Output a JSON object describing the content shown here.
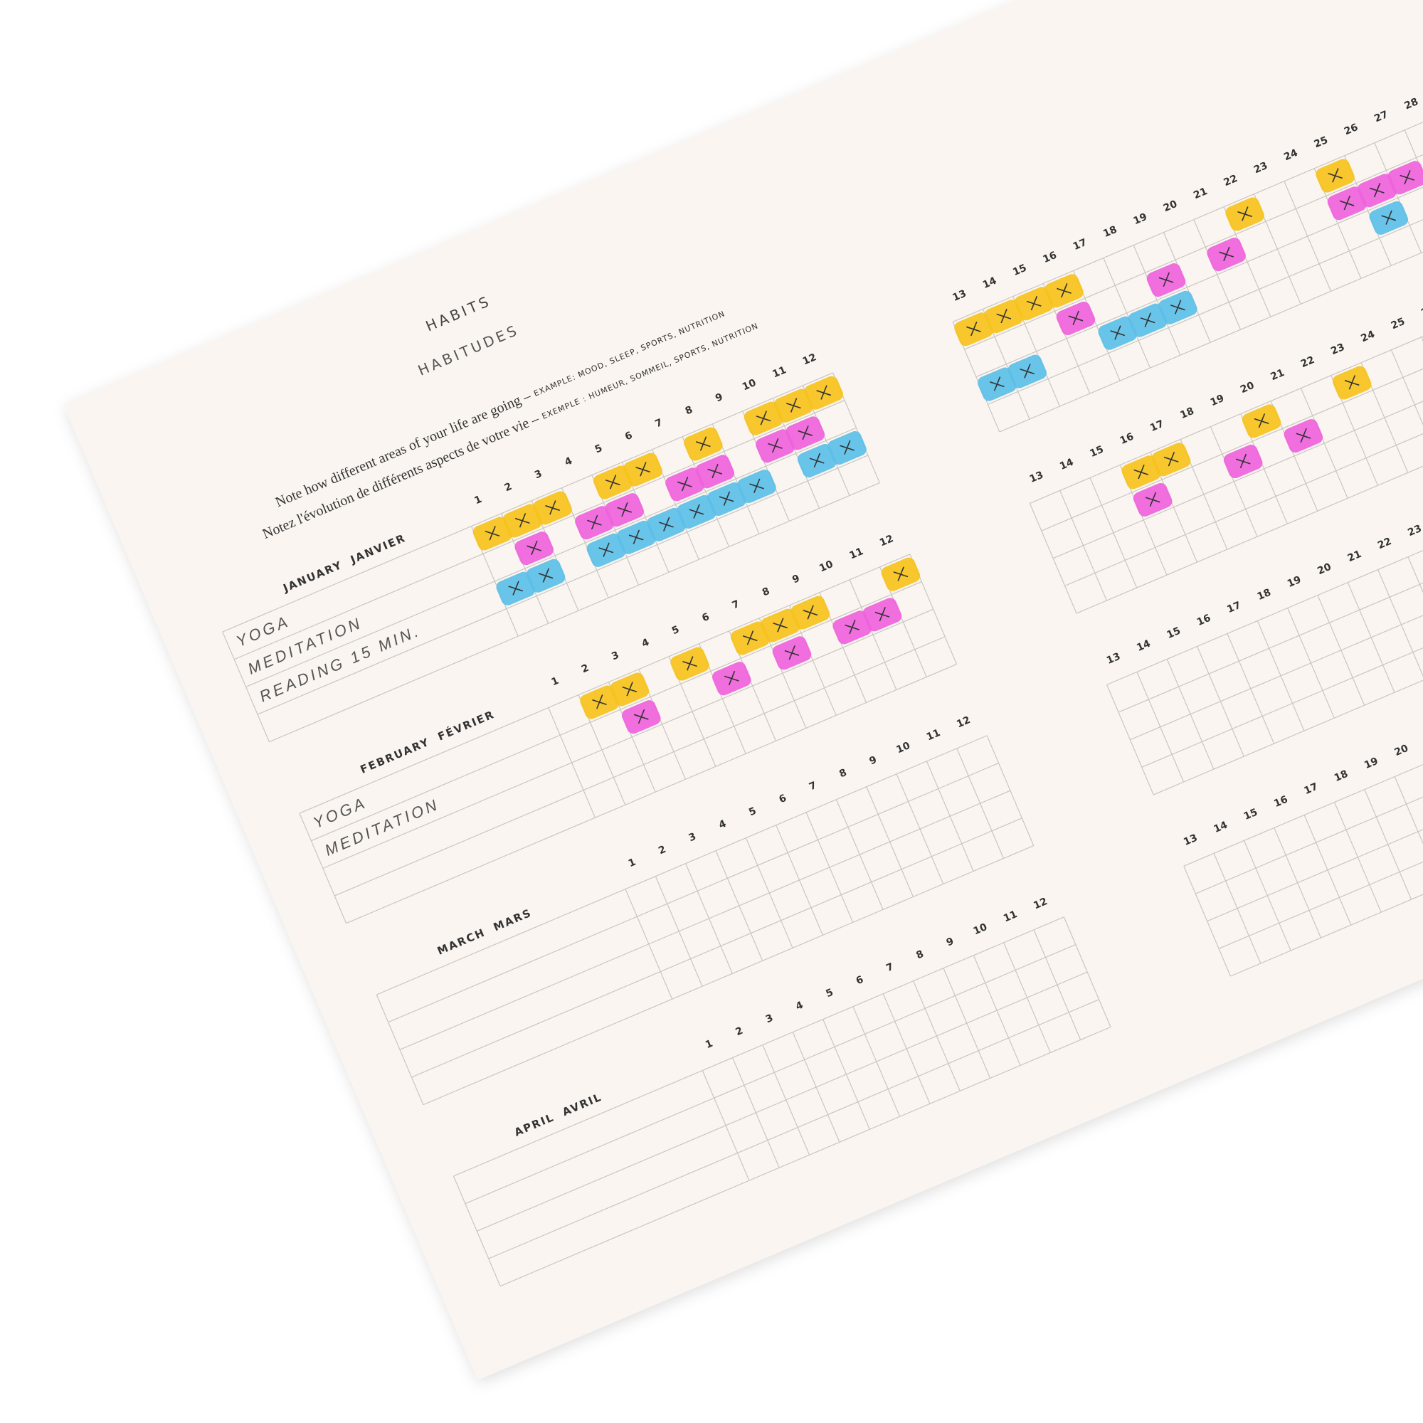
{
  "header": {
    "title": "HABITS",
    "title_fr": "HABITUDES",
    "line_en": "Note how different areas of your life are going –",
    "example_en": "EXAMPLE: MOOD, SLEEP, SPORTS, NUTRITION",
    "line_fr": "Notez l'évolution de différents aspects de votre vie –",
    "example_fr": "EXEMPLE : HUMEUR, SOMMEIL, SPORTS, NUTRITION"
  },
  "days": [
    1,
    2,
    3,
    4,
    5,
    6,
    7,
    8,
    9,
    10,
    11,
    12,
    13,
    14,
    15,
    16,
    17,
    18,
    19,
    20,
    21,
    22,
    23,
    24,
    25,
    26,
    27,
    28
  ],
  "highlight_colors": [
    "#f6c21c",
    "#ef62dc",
    "#5cbfe8"
  ],
  "months": [
    {
      "name": "JANUARY",
      "name_fr": "JANVIER",
      "habits": [
        "YOGA",
        "MEDITATION",
        "READING 15 MIN."
      ],
      "checks": [
        [
          1,
          2,
          3,
          5,
          6,
          8,
          10,
          11,
          12,
          13,
          14,
          15,
          16,
          22,
          25
        ],
        [
          2,
          4,
          5,
          7,
          8,
          10,
          11,
          16,
          19,
          21,
          25,
          26,
          27
        ],
        [
          1,
          2,
          4,
          5,
          6,
          7,
          8,
          9,
          11,
          12,
          13,
          14,
          17,
          18,
          19,
          26
        ]
      ]
    },
    {
      "name": "FEBRUARY",
      "name_fr": "FÉVRIER",
      "habits": [
        "YOGA",
        "MEDITATION"
      ],
      "checks": [
        [
          2,
          3,
          5,
          7,
          8,
          9,
          12,
          16,
          17,
          20,
          23
        ],
        [
          3,
          6,
          8,
          10,
          11,
          16,
          19,
          21
        ]
      ]
    },
    {
      "name": "MARCH",
      "name_fr": "MARS",
      "habits": [],
      "checks": []
    },
    {
      "name": "APRIL",
      "name_fr": "AVRIL",
      "habits": [],
      "checks": []
    }
  ]
}
